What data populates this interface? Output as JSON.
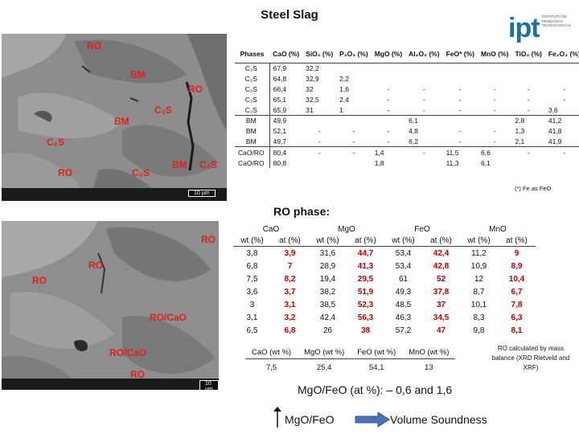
{
  "title": "Steel Slag",
  "logo": {
    "brand": "ipt",
    "subtitle": "INSTITUTO DE PESQUISAS TECNOLÓGICAS"
  },
  "micrograph_top": {
    "labels": {
      "ro1": "RO",
      "bm1": "BM",
      "ro2": "RO",
      "c2s1": "C₂S",
      "bm2": "BM",
      "c2s2": "C₂S",
      "ro3": "RO",
      "c2s3": "C₂S",
      "bm3": "BM",
      "c2s4": "C₂S"
    },
    "scale": "10 µm"
  },
  "micrograph_bottom": {
    "labels": {
      "ro1": "RO",
      "ro2": "RO",
      "ro3": "RO",
      "roca1": "RO/CaO",
      "roca2": "RO/CaO",
      "ro4": "RO"
    },
    "scale": "10 µm"
  },
  "composition_table": {
    "headers": [
      "Phases",
      "CaO (%)",
      "SiO₂ (%)",
      "P₂O₅ (%)",
      "MgO (%)",
      "Al₂O₃ (%)",
      "FeO* (%)",
      "MnO (%)",
      "TiO₂ (%)",
      "Fe₂O₃ (%)"
    ],
    "rows": [
      [
        "C₂S",
        "67,9",
        "32,2",
        "",
        "",
        "",
        "",
        "",
        "",
        ""
      ],
      [
        "C₂S",
        "64,8",
        "32,9",
        "2,2",
        "",
        "",
        "",
        "",
        "",
        ""
      ],
      [
        "C₂S",
        "66,4",
        "32",
        "1,6",
        "-",
        "-",
        "-",
        "-",
        "-",
        "-"
      ],
      [
        "C₂S",
        "65,1",
        "32,5",
        "2,4",
        "-",
        "-",
        "-",
        "-",
        "-",
        "-"
      ],
      [
        "C₂S",
        "65,9",
        "31",
        "1",
        "-",
        "-",
        "-",
        "-",
        "-",
        "3,6"
      ],
      [
        "BM",
        "49,9",
        "",
        "",
        "",
        "6,1",
        "",
        "",
        "2,8",
        "41,2"
      ],
      [
        "BM",
        "52,1",
        "-",
        "-",
        "-",
        "4,8",
        "-",
        "-",
        "1,3",
        "41,8"
      ],
      [
        "BM",
        "49,7",
        "-",
        "-",
        "-",
        "6,2",
        "-",
        "-",
        "2,1",
        "41,9"
      ],
      [
        "CaO/RO",
        "80,4",
        "-",
        "-",
        "1,4",
        "-",
        "11,5",
        "6,6",
        "-",
        "-"
      ],
      [
        "CaO/RO",
        "80,8",
        "",
        "",
        "1,8",
        "",
        "11,3",
        "6,1",
        "",
        ""
      ]
    ],
    "note": "(*) Fe as FeO"
  },
  "ro_phase": {
    "heading": "RO phase:",
    "groups": [
      "CaO",
      "MgO",
      "FeO",
      "MnO"
    ],
    "subheaders": [
      "wt (%)",
      "at (%)",
      "wt (%)",
      "at (%)",
      "wt (%)",
      "at (%)",
      "wt (%)",
      "at (%)"
    ],
    "rows": [
      [
        "3,8",
        "3,9",
        "31,6",
        "44,7",
        "53,4",
        "42,4",
        "11,2",
        "9"
      ],
      [
        "6,8",
        "7",
        "28,9",
        "41,3",
        "53,4",
        "42,8",
        "10,9",
        "8,9"
      ],
      [
        "7,5",
        "8,2",
        "19,4",
        "29,5",
        "61",
        "52",
        "12",
        "10,4"
      ],
      [
        "3,6",
        "3,7",
        "38,2",
        "51,9",
        "49,3",
        "37,8",
        "8,7",
        "6,7"
      ],
      [
        "3",
        "3,1",
        "38,5",
        "52,3",
        "48,5",
        "37",
        "10,1",
        "7,8"
      ],
      [
        "3,1",
        "3,2",
        "42,4",
        "56,3",
        "46,3",
        "34,5",
        "8,3",
        "6,3"
      ],
      [
        "6,5",
        "6,8",
        "26",
        "38",
        "57,2",
        "47",
        "9,8",
        "8,1"
      ]
    ]
  },
  "mass_balance": {
    "headers": [
      "CaO (wt %)",
      "MgO (wt %)",
      "FeO (wt %)",
      "MnO (wt %)"
    ],
    "values": [
      "7,5",
      "25,4",
      "54,1",
      "13"
    ],
    "note": "RO calculated by mass balance (XRD Rietveld and XRF)"
  },
  "ratio_text": "MgO/FeO (at %): – 0,6 and 1,6",
  "legend": {
    "left": "MgO/FeO",
    "right": "Volume Soundness"
  },
  "colors": {
    "label_red": "#e0201a",
    "accent_blue": "#1d6fa8",
    "arrow_blue": "#4a72b8"
  }
}
